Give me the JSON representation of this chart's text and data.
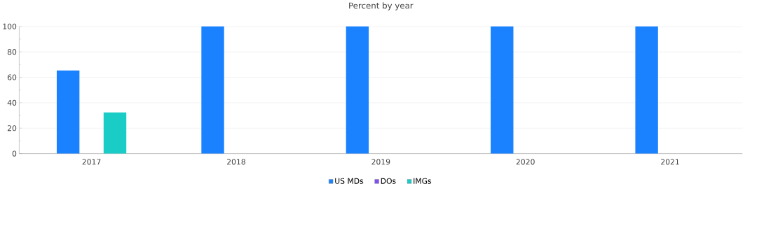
{
  "chart_data": {
    "type": "bar",
    "title": "Percent by year",
    "categories": [
      "2017",
      "2018",
      "2019",
      "2020",
      "2021"
    ],
    "series": [
      {
        "name": "US MDs",
        "color": "#1a82ff",
        "values": [
          65.4,
          100,
          100,
          100,
          100
        ]
      },
      {
        "name": "DOs",
        "color": "#7f4ff0",
        "values": [
          0,
          0,
          0,
          0,
          0
        ]
      },
      {
        "name": "IMGs",
        "color": "#19ccc6",
        "values": [
          32.4,
          0,
          0,
          0,
          0
        ]
      }
    ],
    "ylim": [
      0,
      100
    ],
    "yticks": [
      0,
      20,
      40,
      60,
      80,
      100
    ],
    "grid": "y",
    "legend": "bottom"
  }
}
